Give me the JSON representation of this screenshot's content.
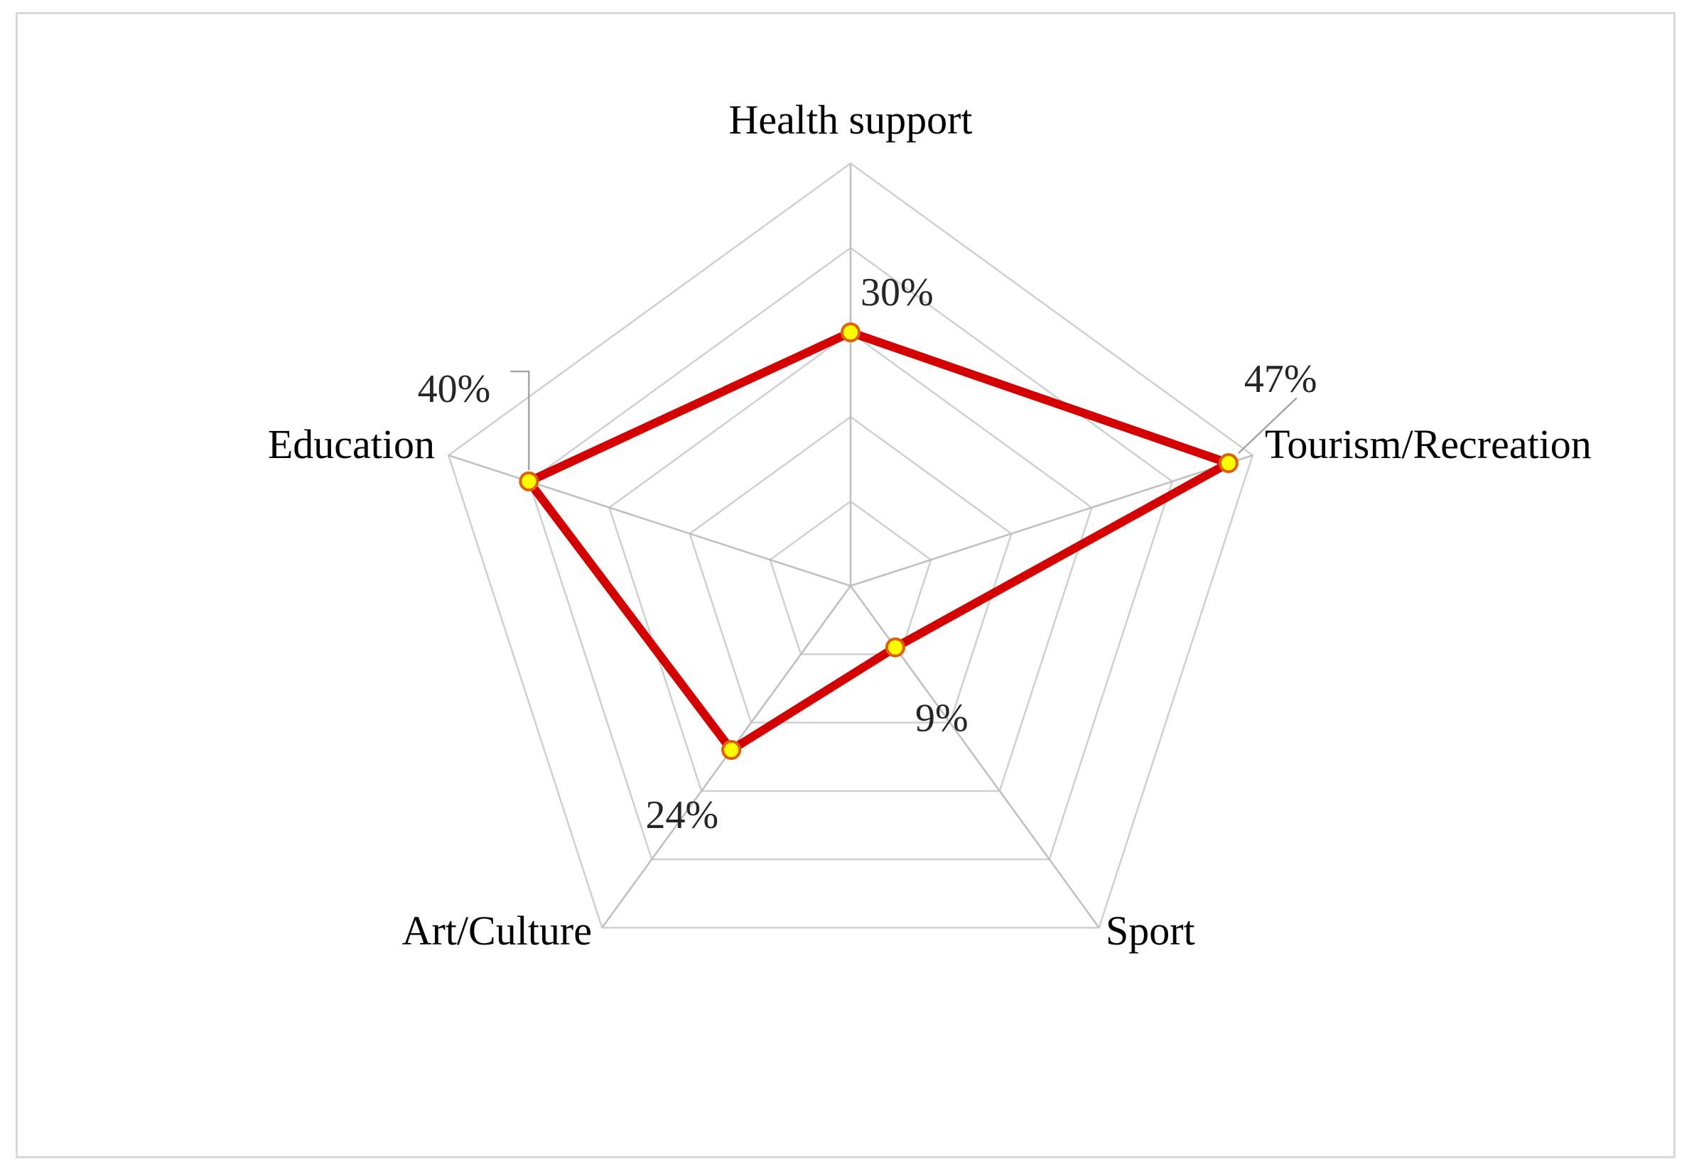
{
  "chart_data": {
    "type": "radar",
    "categories": [
      "Health support",
      "Tourism/Recreation",
      "Sport",
      "Art/Culture",
      "Education"
    ],
    "values": [
      30,
      47,
      9,
      24,
      40
    ],
    "value_labels": [
      "30%",
      "47%",
      "9%",
      "24%",
      "40%"
    ],
    "unit": "%",
    "rmax": 50,
    "grid_levels": 5,
    "grid": true,
    "title": "",
    "colors": {
      "line": "#d40000",
      "marker_fill": "#ffff00",
      "marker_stroke": "#e06000",
      "grid": "#d0d0d0",
      "axis": "#bfbfbf"
    }
  }
}
